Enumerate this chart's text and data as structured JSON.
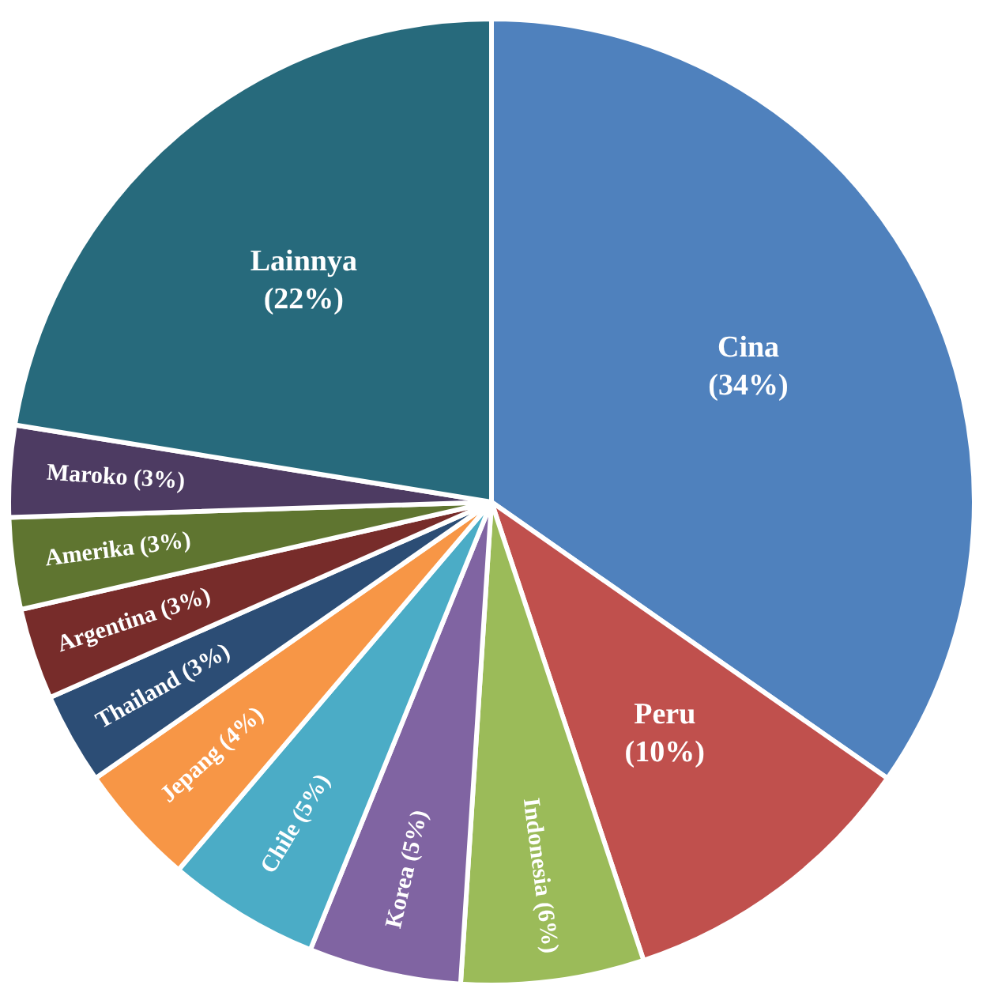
{
  "chart_data": {
    "type": "pie",
    "categories": [
      "Cina",
      "Peru",
      "Indonesia",
      "Korea",
      "Chile",
      "Jepang",
      "Thailand",
      "Argentina",
      "Amerika",
      "Maroko",
      "Lainnya"
    ],
    "values": [
      34,
      10,
      6,
      5,
      5,
      4,
      3,
      3,
      3,
      3,
      22
    ],
    "value_labels": [
      "(34%)",
      "(10%)",
      "(6%)",
      "(5%)",
      "(5%)",
      "(4%)",
      "(3%)",
      "(3%)",
      "(3%)",
      "(3%)",
      "(22%)"
    ],
    "colors": [
      "#4f81bd",
      "#c0504d",
      "#9bbb59",
      "#8064a2",
      "#4bacc6",
      "#f79646",
      "#2c4d75",
      "#772c2a",
      "#5f7530",
      "#4d3b62",
      "#276a7c"
    ],
    "legend": false
  }
}
